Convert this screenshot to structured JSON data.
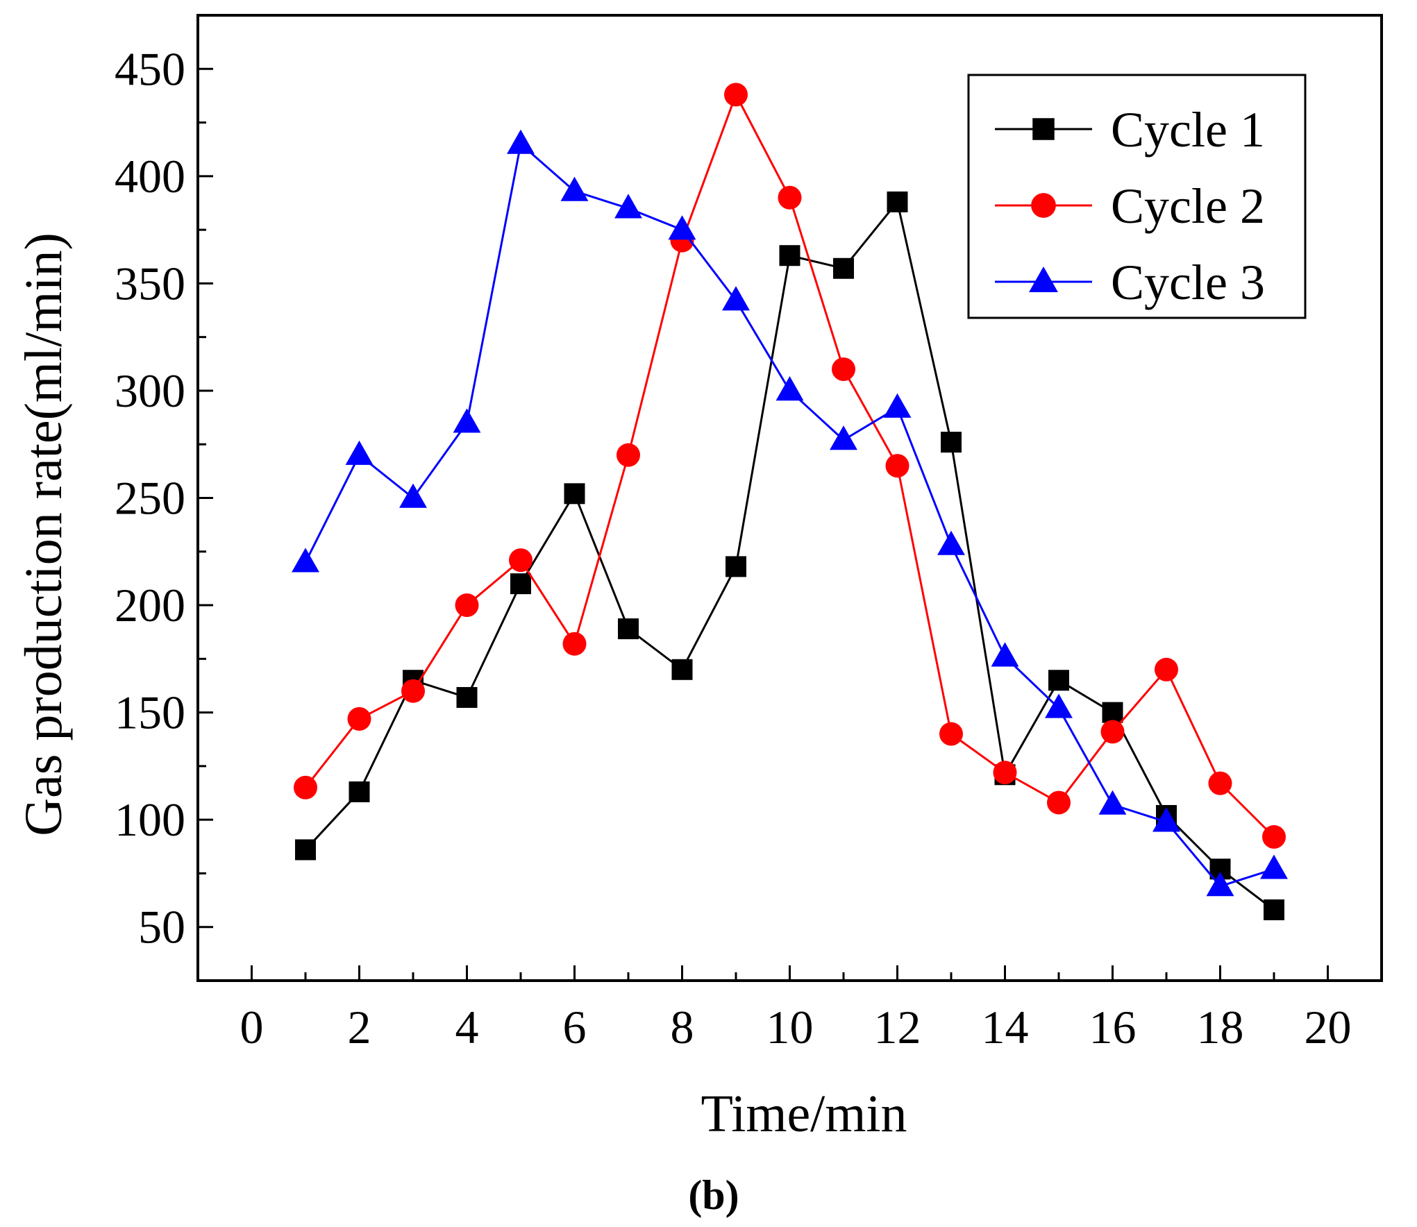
{
  "chart_data": {
    "type": "line",
    "xlabel": "Time/min",
    "ylabel": "Gas production rate(ml/min)",
    "xlim": [
      -1,
      21
    ],
    "ylim": [
      25,
      475
    ],
    "xticks": [
      0,
      2,
      4,
      6,
      8,
      10,
      12,
      14,
      16,
      18,
      20
    ],
    "xtick_labels": [
      "0",
      "2",
      "4",
      "6",
      "8",
      "10",
      "12",
      "14",
      "16",
      "18",
      "20"
    ],
    "yticks": [
      50,
      100,
      150,
      200,
      250,
      300,
      350,
      400,
      450
    ],
    "ytick_labels": [
      "50",
      "100",
      "150",
      "200",
      "250",
      "300",
      "350",
      "400",
      "450"
    ],
    "grid": false,
    "legend_position": "top-right",
    "panel_label": "(b)",
    "x": [
      1,
      2,
      3,
      4,
      5,
      6,
      7,
      8,
      9,
      10,
      11,
      12,
      13,
      14,
      15,
      16,
      17,
      18,
      19
    ],
    "series": [
      {
        "name": "Cycle 1",
        "color": "#000000",
        "marker": "square",
        "values": [
          86,
          113,
          165,
          157,
          210,
          252,
          189,
          170,
          218,
          363,
          357,
          388,
          276,
          121,
          165,
          150,
          102,
          77,
          58
        ]
      },
      {
        "name": "Cycle 2",
        "color": "#ff0000",
        "marker": "circle",
        "values": [
          115,
          147,
          160,
          200,
          221,
          182,
          270,
          370,
          438,
          390,
          310,
          265,
          140,
          122,
          108,
          141,
          170,
          117,
          92
        ]
      },
      {
        "name": "Cycle 3",
        "color": "#0000ff",
        "marker": "triangle",
        "values": [
          220,
          270,
          250,
          285,
          415,
          393,
          385,
          375,
          342,
          300,
          277,
          292,
          228,
          176,
          152,
          107,
          99,
          69,
          77
        ]
      }
    ]
  }
}
